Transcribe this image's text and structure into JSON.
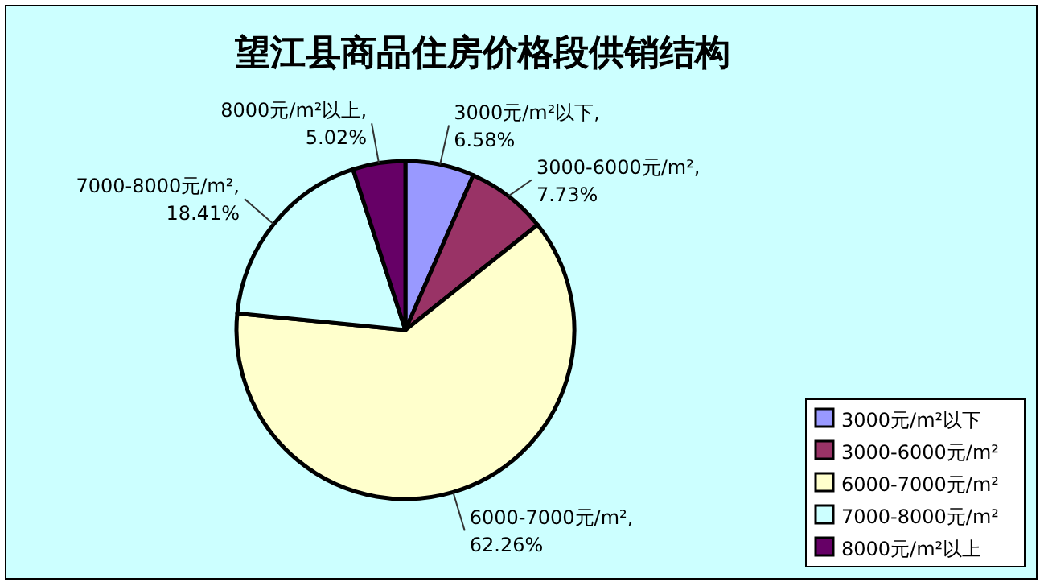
{
  "chart_data": {
    "type": "pie",
    "title": "望江县商品住房价格段供销结构",
    "categories": [
      "3000元/m²以下",
      "3000-6000元/m²",
      "6000-7000元/m²",
      "7000-8000元/m²",
      "8000元/m²以上"
    ],
    "values": [
      6.58,
      7.73,
      62.26,
      18.41,
      5.02
    ],
    "colors": [
      "#9999ff",
      "#993366",
      "#ffffcc",
      "#ccffff",
      "#660066"
    ],
    "value_labels": [
      "3000元/m²以下,\n6.58%",
      "3000-6000元/m²,\n7.73%",
      "6000-7000元/m²,\n62.26%",
      "7000-8000元/m²,\n18.41%",
      "8000元/m²以上,\n5.02%"
    ],
    "legend": "bottom right"
  }
}
